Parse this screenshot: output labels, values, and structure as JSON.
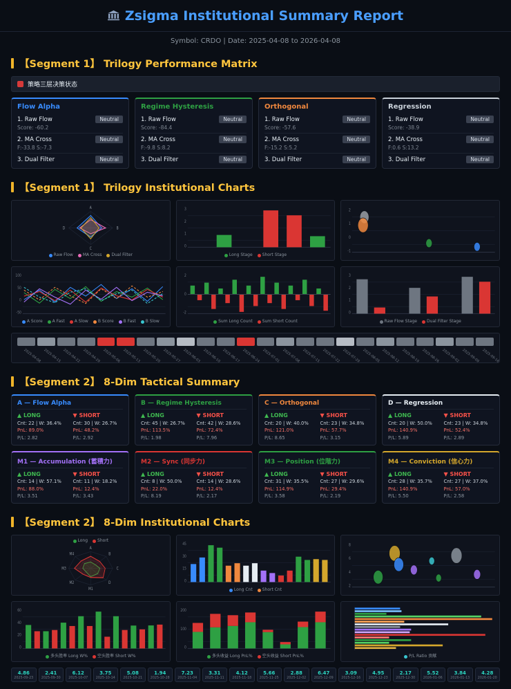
{
  "header": {
    "title": "Zsigma Institutional Summary Report",
    "subtitle": "Symbol: CRDO | Date: 2025-04-08 to 2026-04-08",
    "accent_color": "#4a9eff"
  },
  "sections": {
    "s1_matrix": "【Segment 1】 Trilogy Performance Matrix",
    "s1_charts": "【Segment 1】 Trilogy Institutional Charts",
    "s2_summary": "【Segment 2】 8-Dim Tactical Summary",
    "s2_charts": "【Segment 2】 8-Dim Institutional Charts"
  },
  "matrix": {
    "banner": "策略三层决策状态",
    "cards": [
      {
        "title": "Flow Alpha",
        "color": "#388bfd",
        "rows": [
          {
            "label": "1. Raw Flow",
            "badge": "Neutral",
            "detail": "Score: -60.2"
          },
          {
            "label": "2. MA Cross",
            "badge": "Neutral",
            "detail": "F:-33.8 S:-7.3"
          },
          {
            "label": "3. Dual Filter",
            "badge": "Neutral",
            "detail": ""
          }
        ]
      },
      {
        "title": "Regime Hysteresis",
        "color": "#2ea043",
        "rows": [
          {
            "label": "1. Raw Flow",
            "badge": "Neutral",
            "detail": "Score: -84.4"
          },
          {
            "label": "2. MA Cross",
            "badge": "Neutral",
            "detail": "F:-9.8 S:8.2"
          },
          {
            "label": "3. Dual Filter",
            "badge": "Neutral",
            "detail": ""
          }
        ]
      },
      {
        "title": "Orthogonal",
        "color": "#f0883e",
        "rows": [
          {
            "label": "1. Raw Flow",
            "badge": "Neutral",
            "detail": "Score: -57.6"
          },
          {
            "label": "2. MA Cross",
            "badge": "Neutral",
            "detail": "F:-15.2 S:5.2"
          },
          {
            "label": "3. Dual Filter",
            "badge": "Neutral",
            "detail": ""
          }
        ]
      },
      {
        "title": "Regression",
        "color": "#c9d1d9",
        "rows": [
          {
            "label": "1. Raw Flow",
            "badge": "Neutral",
            "detail": "Score: -38.9"
          },
          {
            "label": "2. MA Cross",
            "badge": "Neutral",
            "detail": "F:0.6 S:13.2"
          },
          {
            "label": "3. Dual Filter",
            "badge": "Neutral",
            "detail": ""
          }
        ]
      }
    ]
  },
  "tactical": {
    "long_label": "▲ LONG",
    "short_label": "▼ SHORT",
    "cards": [
      {
        "title": "A — Flow Alpha",
        "color": "#388bfd",
        "long": {
          "cnt": "Cnt: 22 | W: 36.4%",
          "pnl": "PnL: 89.0%",
          "pl": "P/L: 2.82"
        },
        "short": {
          "cnt": "Cnt: 30 | W: 26.7%",
          "pnl": "PnL: 48.2%",
          "pl": "P/L: 2.92"
        }
      },
      {
        "title": "B — Regime Hysteresis",
        "color": "#2ea043",
        "long": {
          "cnt": "Cnt: 45 | W: 26.7%",
          "pnl": "PnL: 113.5%",
          "pl": "P/L: 1.98"
        },
        "short": {
          "cnt": "Cnt: 42 | W: 28.6%",
          "pnl": "PnL: 72.4%",
          "pl": "P/L: 7.96"
        }
      },
      {
        "title": "C — Orthogonal",
        "color": "#f0883e",
        "long": {
          "cnt": "Cnt: 20 | W: 40.0%",
          "pnl": "PnL: 121.0%",
          "pl": "P/L: 8.65"
        },
        "short": {
          "cnt": "Cnt: 23 | W: 34.8%",
          "pnl": "PnL: 57.7%",
          "pl": "P/L: 3.15"
        }
      },
      {
        "title": "D — Regression",
        "color": "#e6edf3",
        "long": {
          "cnt": "Cnt: 20 | W: 50.0%",
          "pnl": "PnL: 140.9%",
          "pl": "P/L: 5.89"
        },
        "short": {
          "cnt": "Cnt: 23 | W: 34.8%",
          "pnl": "PnL: 52.4%",
          "pl": "P/L: 2.89"
        }
      },
      {
        "title": "M1 — Accumulation (蓄積力)",
        "color": "#a371f7",
        "long": {
          "cnt": "Cnt: 14 | W: 57.1%",
          "pnl": "PnL: 88.0%",
          "pl": "P/L: 3.51"
        },
        "short": {
          "cnt": "Cnt: 11 | W: 18.2%",
          "pnl": "PnL: 12.4%",
          "pl": "P/L: 3.43"
        }
      },
      {
        "title": "M2 — Sync (同步力)",
        "color": "#da3633",
        "long": {
          "cnt": "Cnt: 8 | W: 50.0%",
          "pnl": "PnL: 22.0%",
          "pl": "P/L: 8.19"
        },
        "short": {
          "cnt": "Cnt: 14 | W: 28.6%",
          "pnl": "PnL: 12.4%",
          "pl": "P/L: 2.17"
        }
      },
      {
        "title": "M3 — Position (位階力)",
        "color": "#2ea043",
        "long": {
          "cnt": "Cnt: 31 | W: 35.5%",
          "pnl": "PnL: 114.9%",
          "pl": "P/L: 3.58"
        },
        "short": {
          "cnt": "Cnt: 27 | W: 29.6%",
          "pnl": "PnL: 29.4%",
          "pl": "P/L: 2.19"
        }
      },
      {
        "title": "M4 — Conviction (信心力)",
        "color": "#d4a72c",
        "long": {
          "cnt": "Cnt: 28 | W: 35.7%",
          "pnl": "PnL: 140.9%",
          "pl": "P/L: 5.50"
        },
        "short": {
          "cnt": "Cnt: 27 | W: 37.0%",
          "pnl": "PnL: 57.0%",
          "pl": "P/L: 2.58"
        }
      }
    ]
  },
  "panels1": [
    {
      "id": "trilogy-radar",
      "type": "radar",
      "axes": [
        "A",
        "B",
        "C",
        "D"
      ],
      "series": [
        {
          "name": "Raw Flow",
          "color": "#388bfd",
          "values": [
            0.75,
            0.5,
            0.55,
            0.62
          ]
        },
        {
          "name": "MA Cross",
          "color": "#ec6cb9",
          "values": [
            0.5,
            0.68,
            0.35,
            0.5
          ]
        },
        {
          "name": "Dual Filter",
          "color": "#d4a72c",
          "values": [
            0.62,
            0.38,
            0.66,
            0.44
          ]
        }
      ],
      "legend": [
        {
          "label": "Raw Flow",
          "color": "#388bfd"
        },
        {
          "label": "MA Cross",
          "color": "#ec6cb9"
        },
        {
          "label": "Dual Filter",
          "color": "#d4a72c"
        }
      ]
    },
    {
      "id": "trilogy-stage",
      "type": "bars",
      "yticks": [
        "3",
        "2",
        "1",
        "0"
      ],
      "values": [
        0,
        1,
        0,
        3,
        2.6,
        0.9
      ],
      "colors": [
        "",
        "#2ea043",
        "",
        "#da3633",
        "#da3633",
        "#2ea043"
      ],
      "legend": [
        {
          "label": "Long Stage",
          "color": "#2ea043"
        },
        {
          "label": "Short Stage",
          "color": "#da3633"
        }
      ]
    },
    {
      "id": "trilogy-scatter",
      "type": "scatter",
      "yticks": [
        "2",
        "1",
        "0",
        "-1"
      ],
      "points": [
        {
          "x": 0.08,
          "y": 0.22,
          "r": 6.5,
          "c": "#9aa0a6"
        },
        {
          "x": 0.07,
          "y": 0.4,
          "r": 7.5,
          "c": "#f0883e"
        },
        {
          "x": 0.55,
          "y": 0.8,
          "r": 4.5,
          "c": "#2ea043"
        },
        {
          "x": 0.9,
          "y": 0.88,
          "r": 4.5,
          "c": "#388bfd"
        }
      ]
    },
    {
      "id": "trilogy-lines",
      "type": "lines",
      "yticks": [
        "100",
        "50",
        "0",
        "-50"
      ],
      "series": [
        {
          "name": "A Score",
          "color": "#388bfd",
          "values": [
            35,
            62,
            28,
            70,
            45,
            78,
            38,
            66,
            30,
            72
          ]
        },
        {
          "name": "A Fast",
          "color": "#2ea043",
          "values": [
            55,
            25,
            64,
            38,
            72,
            30,
            58,
            42,
            68,
            35
          ]
        },
        {
          "name": "A Slow",
          "color": "#da3633",
          "values": [
            45,
            58,
            32,
            62,
            28,
            68,
            46,
            34,
            64,
            42
          ]
        },
        {
          "name": "B Score",
          "color": "#f0883e",
          "dash": true,
          "values": [
            62,
            34,
            70,
            46,
            24,
            66,
            38,
            74,
            42,
            58
          ]
        },
        {
          "name": "B Fast",
          "color": "#a371f7",
          "values": [
            28,
            66,
            42,
            22,
            62,
            36,
            70,
            32,
            56,
            46
          ]
        },
        {
          "name": "B Slow",
          "color": "#39c5cf",
          "dash": true,
          "values": [
            70,
            42,
            26,
            56,
            66,
            32,
            52,
            62,
            24,
            52
          ]
        }
      ],
      "legend": [
        {
          "label": "A Score",
          "color": "#388bfd"
        },
        {
          "label": "A Fast",
          "color": "#2ea043"
        },
        {
          "label": "A Slow",
          "color": "#da3633"
        },
        {
          "label": "B Score",
          "color": "#f0883e"
        },
        {
          "label": "B Fast",
          "color": "#a371f7"
        },
        {
          "label": "B Slow",
          "color": "#39c5cf"
        }
      ]
    },
    {
      "id": "trilogy-net-count",
      "type": "bars",
      "mid": true,
      "yticks": [
        "2",
        "0",
        "-2"
      ],
      "values": [
        1.5,
        -1,
        2,
        -2.5,
        1,
        -1.5,
        2.5,
        -3,
        1.5,
        -2,
        3,
        -1.5,
        2,
        -2.5,
        1.5,
        -1,
        2.5,
        -2,
        1,
        -2.8
      ],
      "posColor": "#2ea043",
      "negColor": "#da3633",
      "legend": [
        {
          "label": "Sum Long Count",
          "color": "#2ea043"
        },
        {
          "label": "Sum Short Count",
          "color": "#da3633"
        }
      ]
    },
    {
      "id": "trilogy-stage-compare",
      "type": "bars",
      "yticks": [
        "3",
        "2",
        "1",
        "0"
      ],
      "values": [
        2.8,
        0.5,
        0,
        2.1,
        1.4,
        0,
        3,
        2.6
      ],
      "colors": [
        "#6e7681",
        "#da3633",
        "",
        "#6e7681",
        "#da3633",
        "",
        "#6e7681",
        "#da3633"
      ],
      "legend": [
        {
          "label": "Raw Flow Stage",
          "color": "#6e7681"
        },
        {
          "label": "Dual Filter Stage",
          "color": "#da3633"
        }
      ]
    }
  ],
  "panels2": [
    {
      "id": "dim-radar",
      "type": "radar",
      "legendPos": "top",
      "axes": [
        "A",
        "B",
        "C",
        "D",
        "M1",
        "M2",
        "M3",
        "M4"
      ],
      "series": [
        {
          "name": "Long",
          "color": "#2ea043",
          "values": [
            0.38,
            0.3,
            0.42,
            0.45,
            0.5,
            0.3,
            0.36,
            0.4
          ]
        },
        {
          "name": "Short",
          "color": "#da3633",
          "values": [
            0.72,
            0.58,
            0.66,
            0.8,
            0.55,
            0.5,
            0.74,
            0.62
          ]
        }
      ],
      "legend": [
        {
          "label": "Long",
          "color": "#2ea043"
        },
        {
          "label": "Short",
          "color": "#da3633"
        }
      ]
    },
    {
      "id": "dim-counts",
      "type": "bars",
      "yticks": [
        "45",
        "30",
        "15",
        "0"
      ],
      "values": [
        22,
        30,
        45,
        42,
        20,
        23,
        20,
        23,
        14,
        11,
        8,
        14,
        31,
        27,
        28,
        27
      ],
      "colors": [
        "#388bfd",
        "#388bfd",
        "#2ea043",
        "#2ea043",
        "#f0883e",
        "#f0883e",
        "#e6edf3",
        "#e6edf3",
        "#a371f7",
        "#a371f7",
        "#da3633",
        "#da3633",
        "#2ea043",
        "#2ea043",
        "#d4a72c",
        "#d4a72c"
      ],
      "legend": [
        {
          "label": "Long Cnt",
          "color": "#388bfd"
        },
        {
          "label": "Short Cnt",
          "color": "#f0883e"
        }
      ]
    },
    {
      "id": "dim-bubbles",
      "type": "scatter",
      "yticks": [
        "8",
        "6",
        "4",
        "2"
      ],
      "points": [
        {
          "x": 0.3,
          "y": 0.25,
          "r": 8,
          "c": "#d4a72c"
        },
        {
          "x": 0.33,
          "y": 0.5,
          "r": 7,
          "c": "#388bfd"
        },
        {
          "x": 0.44,
          "y": 0.62,
          "r": 5,
          "c": "#a371f7"
        },
        {
          "x": 0.75,
          "y": 0.3,
          "r": 8,
          "c": "#8b949e"
        },
        {
          "x": 0.18,
          "y": 0.78,
          "r": 7,
          "c": "#2ea043"
        },
        {
          "x": 0.57,
          "y": 0.42,
          "r": 4,
          "c": "#39c5cf"
        },
        {
          "x": 0.9,
          "y": 0.72,
          "r": 5,
          "c": "#a371f7"
        },
        {
          "x": 0.62,
          "y": 0.8,
          "r": 4,
          "c": "#2ea043"
        }
      ]
    },
    {
      "id": "dim-winrate",
      "type": "bars",
      "yticks": [
        "60",
        "40",
        "20",
        "0"
      ],
      "values": [
        36.4,
        26.7,
        26.7,
        28.6,
        40,
        34.8,
        50,
        34.8,
        57.1,
        18.2,
        50,
        28.6,
        35.5,
        29.6,
        35.7,
        37
      ],
      "colors": [
        "#2ea043",
        "#da3633",
        "#2ea043",
        "#da3633",
        "#2ea043",
        "#da3633",
        "#2ea043",
        "#da3633",
        "#2ea043",
        "#da3633",
        "#2ea043",
        "#da3633",
        "#2ea043",
        "#da3633",
        "#2ea043",
        "#da3633"
      ],
      "legend": [
        {
          "label": "多头胜率 Long W%",
          "color": "#2ea043"
        },
        {
          "label": "空头胜率 Short W%",
          "color": "#da3633"
        }
      ]
    },
    {
      "id": "dim-pnl-stack",
      "type": "stack",
      "yticks": [
        "200",
        "100",
        "0"
      ],
      "pairs": [
        [
          89,
          48.2
        ],
        [
          113.5,
          72.4
        ],
        [
          121,
          57.7
        ],
        [
          140.9,
          52.4
        ],
        [
          88,
          12.4
        ],
        [
          22,
          12.4
        ],
        [
          114.9,
          29.4
        ],
        [
          140.9,
          57
        ]
      ],
      "colors": [
        "#2ea043",
        "#da3633"
      ],
      "legend": [
        {
          "label": "多头收益 Long PnL%",
          "color": "#2ea043"
        },
        {
          "label": "空头收益 Short PnL%",
          "color": "#da3633"
        }
      ]
    },
    {
      "id": "dim-pl-hbars",
      "type": "hbars",
      "widths": [
        0.33,
        0.34,
        0.23,
        0.92,
        1.0,
        0.36,
        0.68,
        0.33,
        0.41,
        0.4,
        0.95,
        0.25,
        0.41,
        0.25,
        0.64,
        0.3
      ],
      "colors": [
        "#388bfd",
        "#79c0ff",
        "#2ea043",
        "#56d364",
        "#f0883e",
        "#ffa657",
        "#e6edf3",
        "#8b949e",
        "#a371f7",
        "#d2a8ff",
        "#da3633",
        "#ff7b72",
        "#2ea043",
        "#56d364",
        "#d4a72c",
        "#e3b341"
      ],
      "legend": [
        {
          "label": "P/L Ratio 贡献",
          "color": "#39c5cf"
        }
      ]
    }
  ],
  "strip1": {
    "dates": [
      "2025-04-08",
      "2025-04-15",
      "2025-04-22",
      "2025-04-29",
      "2025-05-06",
      "2025-05-13",
      "2025-05-20",
      "2025-05-27",
      "2025-06-03",
      "2025-06-10",
      "2025-06-17",
      "2025-06-24",
      "2025-07-01",
      "2025-07-08",
      "2025-07-15",
      "2025-07-22",
      "2025-07-29",
      "2025-08-05",
      "2025-08-12",
      "2025-08-19",
      "2025-08-26",
      "2025-09-02",
      "2025-09-09",
      "2025-09-16"
    ],
    "colors": [
      "#6e7681",
      "#8b949e",
      "#6e7681",
      "#6e7681",
      "#da3633",
      "#da3633",
      "#6e7681",
      "#8b949e",
      "#b6bcc4",
      "#6e7681",
      "#6e7681",
      "#da3633",
      "#6e7681",
      "#8b949e",
      "#6e7681",
      "#6e7681",
      "#b6bcc4",
      "#6e7681",
      "#8b949e",
      "#6e7681",
      "#6e7681",
      "#8b949e",
      "#6e7681",
      "#6e7681"
    ]
  },
  "strip2": {
    "tiles": [
      {
        "value": "4.86",
        "date": "2025-09-23"
      },
      {
        "value": "2.41",
        "date": "2025-09-30"
      },
      {
        "value": "6.12",
        "date": "2025-10-07"
      },
      {
        "value": "3.75",
        "date": "2025-10-14"
      },
      {
        "value": "5.08",
        "date": "2025-10-21"
      },
      {
        "value": "1.94",
        "date": "2025-10-28"
      },
      {
        "value": "7.23",
        "date": "2025-11-04"
      },
      {
        "value": "3.31",
        "date": "2025-11-11"
      },
      {
        "value": "4.12",
        "date": "2025-11-18"
      },
      {
        "value": "5.66",
        "date": "2025-11-25"
      },
      {
        "value": "2.88",
        "date": "2025-12-02"
      },
      {
        "value": "6.47",
        "date": "2025-12-09"
      },
      {
        "value": "3.09",
        "date": "2025-12-16"
      },
      {
        "value": "4.95",
        "date": "2025-12-23"
      },
      {
        "value": "2.17",
        "date": "2025-12-30"
      },
      {
        "value": "5.52",
        "date": "2026-01-06"
      },
      {
        "value": "3.84",
        "date": "2026-01-13"
      },
      {
        "value": "4.28",
        "date": "2026-01-20"
      }
    ]
  }
}
